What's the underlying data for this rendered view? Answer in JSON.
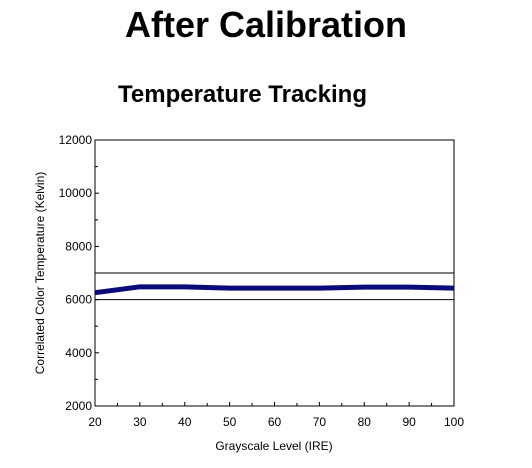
{
  "page": {
    "title": "After Calibration"
  },
  "chart_data": {
    "type": "line",
    "title": "Temperature Tracking",
    "xlabel": "Grayscale Level (IRE)",
    "ylabel": "Correlated Color Temperature (Kelvin)",
    "xlim": [
      20,
      100
    ],
    "ylim": [
      2000,
      12000
    ],
    "x_ticks": [
      20,
      30,
      40,
      50,
      60,
      70,
      80,
      90,
      100
    ],
    "y_ticks": [
      2000,
      4000,
      6000,
      8000,
      10000,
      12000
    ],
    "grid": false,
    "reference_lines": [
      6000,
      7000
    ],
    "series": [
      {
        "color": "#0a0a78",
        "x": [
          20,
          30,
          40,
          50,
          60,
          70,
          80,
          90,
          100
        ],
        "y": [
          6260,
          6480,
          6480,
          6430,
          6430,
          6430,
          6470,
          6470,
          6430
        ]
      }
    ],
    "colors": {
      "line": "#0a0a78",
      "axis": "#000000"
    }
  }
}
